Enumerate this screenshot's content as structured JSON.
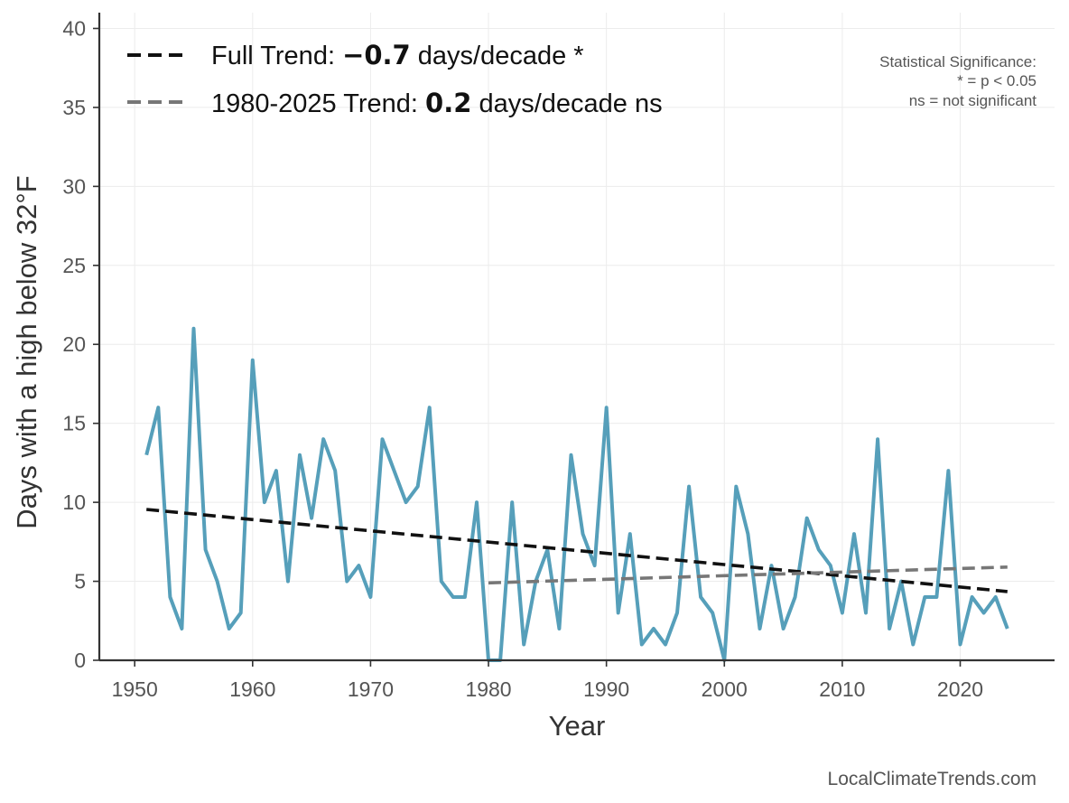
{
  "chart_data": {
    "type": "line",
    "xlabel": "Year",
    "ylabel": "Days with a high below 32°F",
    "xlim": [
      1947,
      2028
    ],
    "ylim": [
      0,
      41
    ],
    "x_ticks": [
      1950,
      1960,
      1970,
      1980,
      1990,
      2000,
      2010,
      2020
    ],
    "y_ticks": [
      0,
      5,
      10,
      15,
      20,
      25,
      30,
      35,
      40
    ],
    "grid": true,
    "legend_position": "top-left",
    "series": [
      {
        "role": "observed",
        "color": "#569fba",
        "x": [
          1951,
          1952,
          1953,
          1954,
          1955,
          1956,
          1957,
          1958,
          1959,
          1960,
          1961,
          1962,
          1963,
          1964,
          1965,
          1966,
          1967,
          1968,
          1969,
          1970,
          1971,
          1972,
          1973,
          1974,
          1975,
          1976,
          1977,
          1978,
          1979,
          1980,
          1981,
          1982,
          1983,
          1984,
          1985,
          1986,
          1987,
          1988,
          1989,
          1990,
          1991,
          1992,
          1993,
          1994,
          1995,
          1996,
          1997,
          1998,
          1999,
          2000,
          2001,
          2002,
          2003,
          2004,
          2005,
          2006,
          2007,
          2008,
          2009,
          2010,
          2011,
          2012,
          2013,
          2014,
          2015,
          2016,
          2017,
          2018,
          2019,
          2020,
          2021,
          2022,
          2023,
          2024
        ],
        "values": [
          13,
          16,
          4,
          2,
          21,
          7,
          5,
          2,
          3,
          19,
          10,
          12,
          5,
          13,
          9,
          14,
          12,
          5,
          6,
          4,
          14,
          12,
          10,
          11,
          16,
          5,
          4,
          4,
          10,
          0,
          0,
          10,
          1,
          5,
          7,
          2,
          13,
          8,
          6,
          16,
          3,
          8,
          1,
          2,
          1,
          3,
          11,
          4,
          3,
          0,
          11,
          8,
          2,
          6,
          2,
          4,
          9,
          7,
          6,
          3,
          8,
          3,
          14,
          2,
          5,
          1,
          4,
          4,
          12,
          1,
          4,
          3,
          4,
          2
        ]
      },
      {
        "role": "trend",
        "name": "Full Trend",
        "color": "#111111",
        "style": "dashed",
        "x": [
          1951,
          2024
        ],
        "values": [
          9.55,
          4.35
        ]
      },
      {
        "role": "trend",
        "name": "1980-2025 Trend",
        "color": "#777777",
        "style": "dashed",
        "x": [
          1980,
          2024
        ],
        "values": [
          4.9,
          5.9
        ]
      }
    ],
    "legend": [
      {
        "prefix": "Full Trend: ",
        "value": "−0.7",
        "suffix": " days/decade *",
        "color": "#111111"
      },
      {
        "prefix": "1980-2025 Trend: ",
        "value": "0.2",
        "suffix": " days/decade ns",
        "color": "#777777"
      }
    ],
    "annotation": {
      "lines": [
        "Statistical Significance:",
        "* = p < 0.05",
        "ns = not significant"
      ]
    },
    "source": "LocalClimateTrends.com"
  }
}
